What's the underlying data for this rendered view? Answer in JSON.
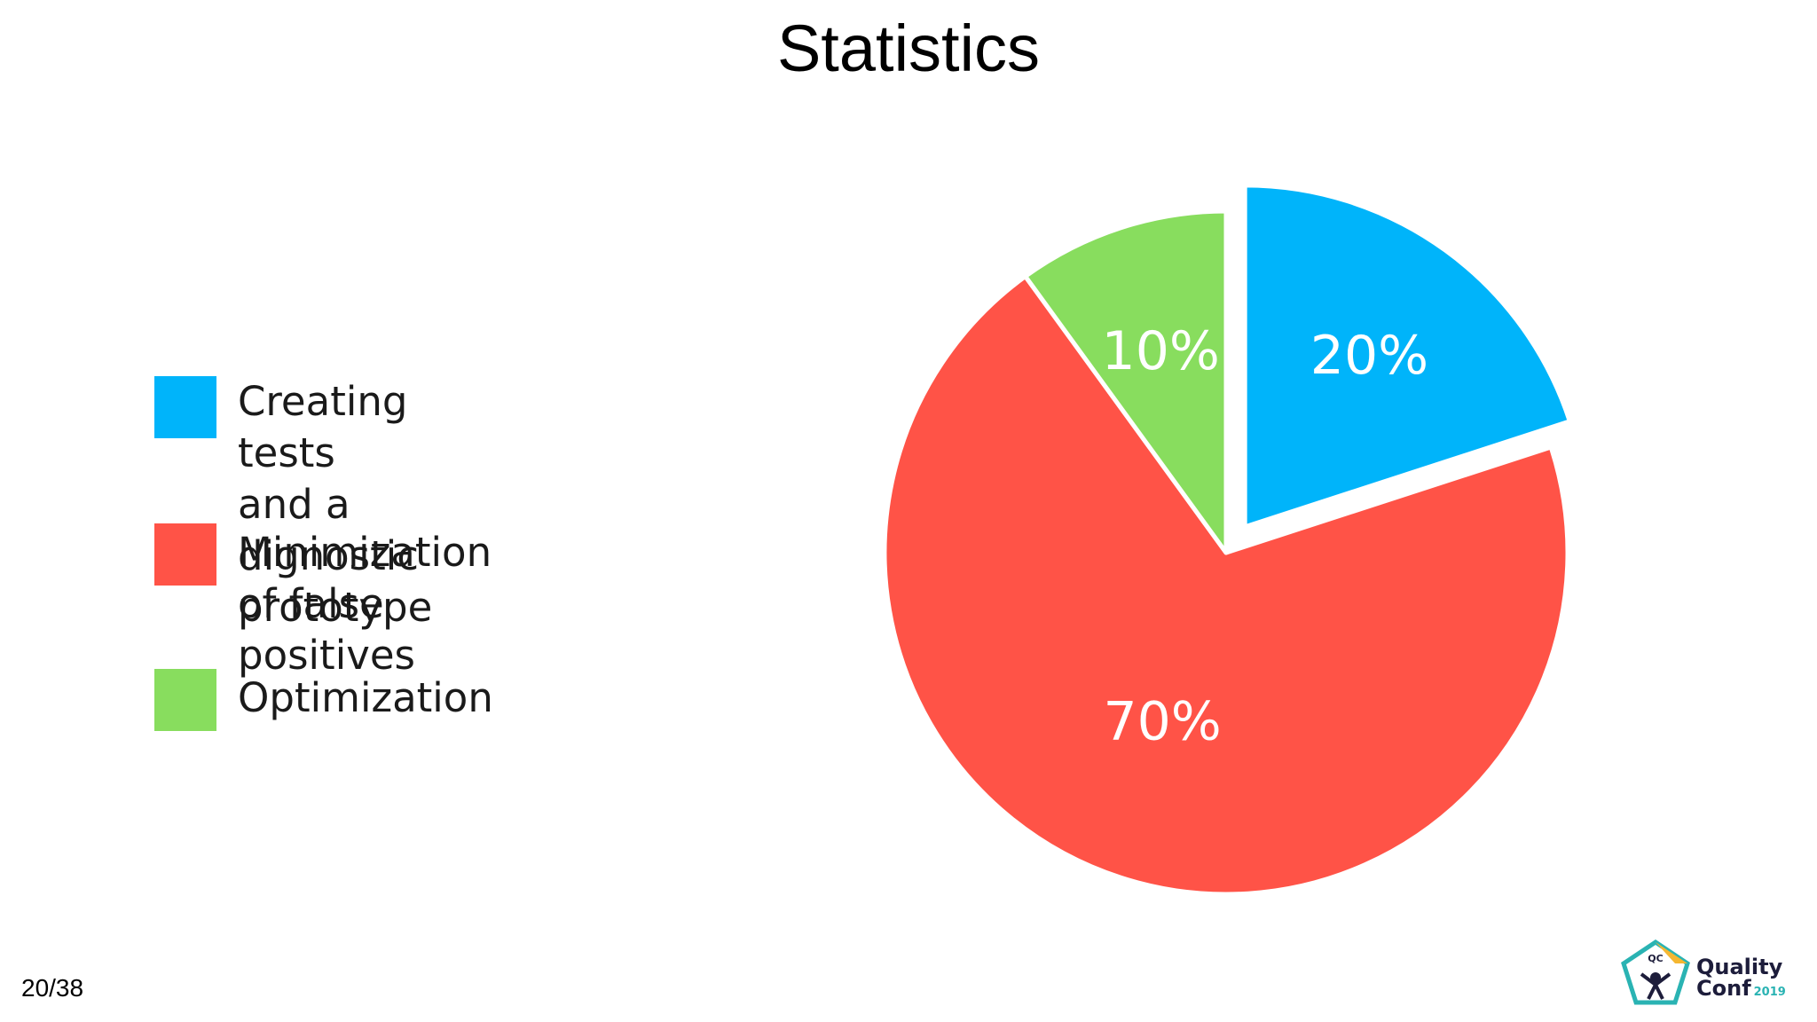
{
  "slide": {
    "title": "Statistics",
    "page_number": "20/38"
  },
  "logo": {
    "line1": "Quality",
    "line2": "Conf",
    "year": "2019",
    "badge": "QC"
  },
  "chart_data": {
    "type": "pie",
    "title": "",
    "categories": [
      "Creating tests\nand a dignostic prototype",
      "Minimization of false positives",
      "Optimization"
    ],
    "values": [
      20,
      70,
      10
    ],
    "data_labels": [
      "20%",
      "70%",
      "10%"
    ],
    "colors": [
      "#00b4fa",
      "#ff5347",
      "#88dd5e"
    ],
    "exploded": [
      true,
      false,
      false
    ],
    "legend": "left"
  }
}
